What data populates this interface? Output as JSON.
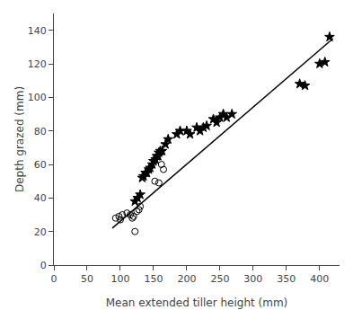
{
  "chart_data": {
    "type": "scatter",
    "xlabel": "Mean extended tiller height (mm)",
    "ylabel": "Depth grazed (mm)",
    "xlim": [
      0,
      430
    ],
    "ylim": [
      0,
      150
    ],
    "xticks": [
      0,
      50,
      100,
      150,
      200,
      250,
      300,
      350,
      400
    ],
    "yticks": [
      0,
      20,
      40,
      60,
      80,
      100,
      120,
      140
    ],
    "grid": false,
    "series": [
      {
        "type": "line",
        "line_style": "solid",
        "color": "#000000",
        "x": [
          88,
          420
        ],
        "values": [
          22,
          135
        ]
      },
      {
        "type": "scatter",
        "marker": "circle-open",
        "color": "#000000",
        "x": [
          93,
          98,
          100,
          103,
          110,
          115,
          118,
          120,
          122,
          125,
          128,
          130,
          152,
          158,
          162,
          165
        ],
        "values": [
          28,
          29,
          27,
          30,
          31,
          30,
          28,
          29,
          20,
          32,
          33,
          35,
          50,
          49,
          60,
          57
        ]
      },
      {
        "type": "scatter",
        "marker": "star",
        "color": "#000000",
        "x": [
          122,
          126,
          130,
          133,
          135,
          138,
          140,
          143,
          145,
          148,
          150,
          153,
          155,
          157,
          158,
          160,
          163,
          168,
          172,
          185,
          190,
          200,
          205,
          215,
          220,
          225,
          230,
          240,
          245,
          250,
          255,
          260,
          268,
          370,
          378,
          400,
          408,
          415
        ],
        "values": [
          38,
          40,
          42,
          52,
          53,
          55,
          55,
          57,
          58,
          60,
          62,
          63,
          65,
          65,
          67,
          68,
          68,
          72,
          75,
          78,
          80,
          80,
          78,
          82,
          80,
          82,
          83,
          87,
          85,
          88,
          90,
          88,
          90,
          108,
          107,
          120,
          121,
          136
        ]
      }
    ]
  }
}
